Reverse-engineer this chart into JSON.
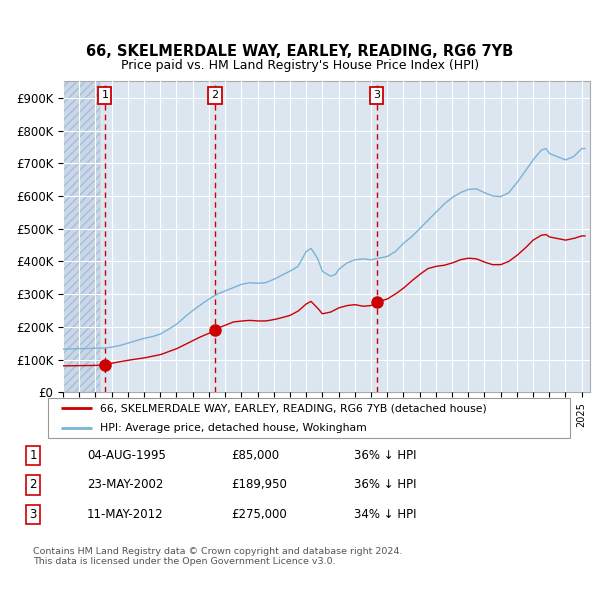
{
  "title1": "66, SKELMERDALE WAY, EARLEY, READING, RG6 7YB",
  "title2": "Price paid vs. HM Land Registry's House Price Index (HPI)",
  "xlim_start": 1993.0,
  "xlim_end": 2025.5,
  "ylim": [
    0,
    950000
  ],
  "yticks": [
    0,
    100000,
    200000,
    300000,
    400000,
    500000,
    600000,
    700000,
    800000,
    900000
  ],
  "ytick_labels": [
    "£0",
    "£100K",
    "£200K",
    "£300K",
    "£400K",
    "£500K",
    "£600K",
    "£700K",
    "£800K",
    "£900K"
  ],
  "sale_dates": [
    1995.583,
    2002.388,
    2012.358
  ],
  "sale_prices": [
    85000,
    189950,
    275000
  ],
  "sale_labels": [
    "1",
    "2",
    "3"
  ],
  "legend_red": "66, SKELMERDALE WAY, EARLEY, READING, RG6 7YB (detached house)",
  "legend_blue": "HPI: Average price, detached house, Wokingham",
  "table_rows": [
    [
      "1",
      "04-AUG-1995",
      "£85,000",
      "36% ↓ HPI"
    ],
    [
      "2",
      "23-MAY-2002",
      "£189,950",
      "36% ↓ HPI"
    ],
    [
      "3",
      "11-MAY-2012",
      "£275,000",
      "34% ↓ HPI"
    ]
  ],
  "footnote1": "Contains HM Land Registry data © Crown copyright and database right 2024.",
  "footnote2": "This data is licensed under the Open Government Licence v3.0.",
  "bg_color": "#dce6f1",
  "hatch_color": "#c8d8ea",
  "grid_color": "#ffffff",
  "red_line_color": "#cc0000",
  "blue_line_color": "#7ab3d4",
  "box_color": "#cc0000",
  "hpi_keypoints": [
    [
      1993.0,
      132000
    ],
    [
      1993.5,
      133000
    ],
    [
      1994.0,
      133500
    ],
    [
      1994.5,
      134000
    ],
    [
      1995.0,
      134500
    ],
    [
      1995.5,
      135000
    ],
    [
      1996.0,
      138000
    ],
    [
      1996.5,
      143000
    ],
    [
      1997.0,
      150000
    ],
    [
      1997.5,
      158000
    ],
    [
      1998.0,
      165000
    ],
    [
      1998.5,
      170000
    ],
    [
      1999.0,
      178000
    ],
    [
      1999.5,
      192000
    ],
    [
      2000.0,
      208000
    ],
    [
      2000.5,
      230000
    ],
    [
      2001.0,
      250000
    ],
    [
      2001.5,
      268000
    ],
    [
      2002.0,
      285000
    ],
    [
      2002.5,
      300000
    ],
    [
      2003.0,
      310000
    ],
    [
      2003.5,
      320000
    ],
    [
      2004.0,
      330000
    ],
    [
      2004.5,
      335000
    ],
    [
      2005.0,
      333000
    ],
    [
      2005.5,
      335000
    ],
    [
      2006.0,
      345000
    ],
    [
      2006.5,
      358000
    ],
    [
      2007.0,
      370000
    ],
    [
      2007.5,
      385000
    ],
    [
      2008.0,
      430000
    ],
    [
      2008.3,
      440000
    ],
    [
      2008.7,
      410000
    ],
    [
      2009.0,
      370000
    ],
    [
      2009.5,
      355000
    ],
    [
      2009.8,
      360000
    ],
    [
      2010.0,
      375000
    ],
    [
      2010.5,
      395000
    ],
    [
      2011.0,
      405000
    ],
    [
      2011.5,
      408000
    ],
    [
      2012.0,
      405000
    ],
    [
      2012.5,
      410000
    ],
    [
      2013.0,
      415000
    ],
    [
      2013.5,
      430000
    ],
    [
      2014.0,
      455000
    ],
    [
      2014.5,
      475000
    ],
    [
      2015.0,
      500000
    ],
    [
      2015.5,
      525000
    ],
    [
      2016.0,
      550000
    ],
    [
      2016.5,
      575000
    ],
    [
      2017.0,
      595000
    ],
    [
      2017.5,
      610000
    ],
    [
      2018.0,
      620000
    ],
    [
      2018.5,
      622000
    ],
    [
      2019.0,
      610000
    ],
    [
      2019.5,
      600000
    ],
    [
      2020.0,
      598000
    ],
    [
      2020.5,
      610000
    ],
    [
      2021.0,
      640000
    ],
    [
      2021.5,
      675000
    ],
    [
      2022.0,
      710000
    ],
    [
      2022.5,
      740000
    ],
    [
      2022.8,
      745000
    ],
    [
      2023.0,
      730000
    ],
    [
      2023.5,
      720000
    ],
    [
      2024.0,
      710000
    ],
    [
      2024.5,
      720000
    ],
    [
      2025.0,
      745000
    ]
  ],
  "red_keypoints": [
    [
      1993.0,
      81000
    ],
    [
      1994.0,
      81500
    ],
    [
      1995.0,
      82000
    ],
    [
      1995.583,
      85000
    ],
    [
      1996.0,
      89000
    ],
    [
      1997.0,
      98000
    ],
    [
      1998.0,
      105000
    ],
    [
      1999.0,
      115000
    ],
    [
      2000.0,
      133000
    ],
    [
      2001.0,
      158000
    ],
    [
      2001.5,
      170000
    ],
    [
      2002.0,
      180000
    ],
    [
      2002.388,
      189950
    ],
    [
      2002.5,
      195000
    ],
    [
      2003.0,
      205000
    ],
    [
      2003.5,
      215000
    ],
    [
      2004.0,
      218000
    ],
    [
      2004.5,
      220000
    ],
    [
      2005.0,
      218000
    ],
    [
      2005.5,
      218000
    ],
    [
      2006.0,
      222000
    ],
    [
      2006.5,
      228000
    ],
    [
      2007.0,
      235000
    ],
    [
      2007.5,
      248000
    ],
    [
      2008.0,
      270000
    ],
    [
      2008.3,
      278000
    ],
    [
      2008.7,
      258000
    ],
    [
      2009.0,
      240000
    ],
    [
      2009.5,
      245000
    ],
    [
      2010.0,
      258000
    ],
    [
      2010.5,
      265000
    ],
    [
      2011.0,
      268000
    ],
    [
      2011.5,
      263000
    ],
    [
      2012.0,
      265000
    ],
    [
      2012.358,
      275000
    ],
    [
      2012.5,
      278000
    ],
    [
      2013.0,
      285000
    ],
    [
      2013.5,
      300000
    ],
    [
      2014.0,
      318000
    ],
    [
      2014.5,
      340000
    ],
    [
      2015.0,
      360000
    ],
    [
      2015.5,
      378000
    ],
    [
      2016.0,
      385000
    ],
    [
      2016.5,
      388000
    ],
    [
      2017.0,
      395000
    ],
    [
      2017.5,
      405000
    ],
    [
      2018.0,
      410000
    ],
    [
      2018.5,
      408000
    ],
    [
      2019.0,
      398000
    ],
    [
      2019.5,
      390000
    ],
    [
      2020.0,
      390000
    ],
    [
      2020.5,
      400000
    ],
    [
      2021.0,
      418000
    ],
    [
      2021.5,
      440000
    ],
    [
      2022.0,
      465000
    ],
    [
      2022.5,
      480000
    ],
    [
      2022.8,
      482000
    ],
    [
      2023.0,
      475000
    ],
    [
      2023.5,
      470000
    ],
    [
      2024.0,
      465000
    ],
    [
      2024.5,
      470000
    ],
    [
      2025.0,
      478000
    ]
  ]
}
